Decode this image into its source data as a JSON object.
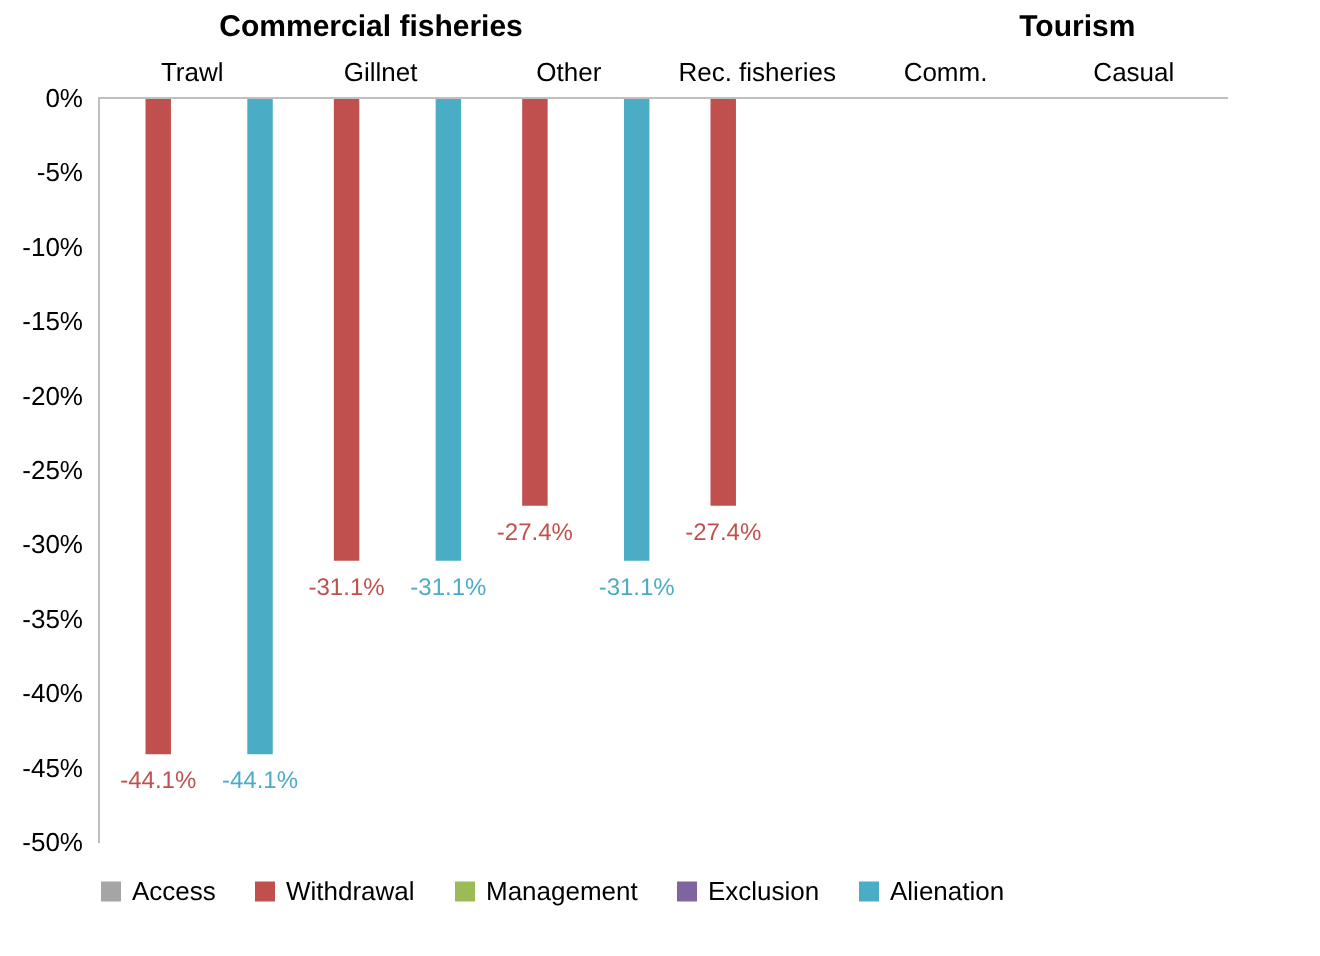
{
  "chart_data": {
    "type": "bar",
    "categories": [
      "Trawl",
      "Gillnet",
      "Other",
      "Rec. fisheries",
      "Comm.",
      "Casual"
    ],
    "series": [
      {
        "name": "Access",
        "color": "#a5a5a5",
        "values": [
          0,
          0,
          0,
          0,
          0,
          0
        ]
      },
      {
        "name": "Withdrawal",
        "color": "#c0504d",
        "values": [
          -44.1,
          -31.1,
          -27.4,
          -27.4,
          0,
          0
        ],
        "value_labels": [
          "-44.1%",
          "-31.1%",
          "-27.4%",
          "-27.4%",
          null,
          null
        ]
      },
      {
        "name": "Management",
        "color": "#9bbb59",
        "values": [
          0,
          0,
          0,
          0,
          0,
          0
        ]
      },
      {
        "name": "Exclusion",
        "color": "#8064a2",
        "values": [
          0,
          0,
          0,
          0,
          0,
          0
        ]
      },
      {
        "name": "Alienation",
        "color": "#4bacc6",
        "values": [
          -44.1,
          -31.1,
          -31.1,
          0,
          0,
          0
        ],
        "value_labels": [
          "-44.1%",
          "-31.1%",
          "-31.1%",
          null,
          null,
          null
        ]
      }
    ],
    "ylim": [
      -50,
      0
    ],
    "yticks": [
      {
        "value": 0,
        "label": "0%"
      },
      {
        "value": -5,
        "label": "-5%"
      },
      {
        "value": -10,
        "label": "-10%"
      },
      {
        "value": -15,
        "label": "-15%"
      },
      {
        "value": -20,
        "label": "-20%"
      },
      {
        "value": -25,
        "label": "-25%"
      },
      {
        "value": -30,
        "label": "-30%"
      },
      {
        "value": -35,
        "label": "-35%"
      },
      {
        "value": -40,
        "label": "-40%"
      },
      {
        "value": -45,
        "label": "-45%"
      },
      {
        "value": -50,
        "label": "-50%"
      }
    ],
    "annotations": [
      "Commercial fisheries",
      "Tourism"
    ],
    "grid": false,
    "legend": "bottom"
  }
}
